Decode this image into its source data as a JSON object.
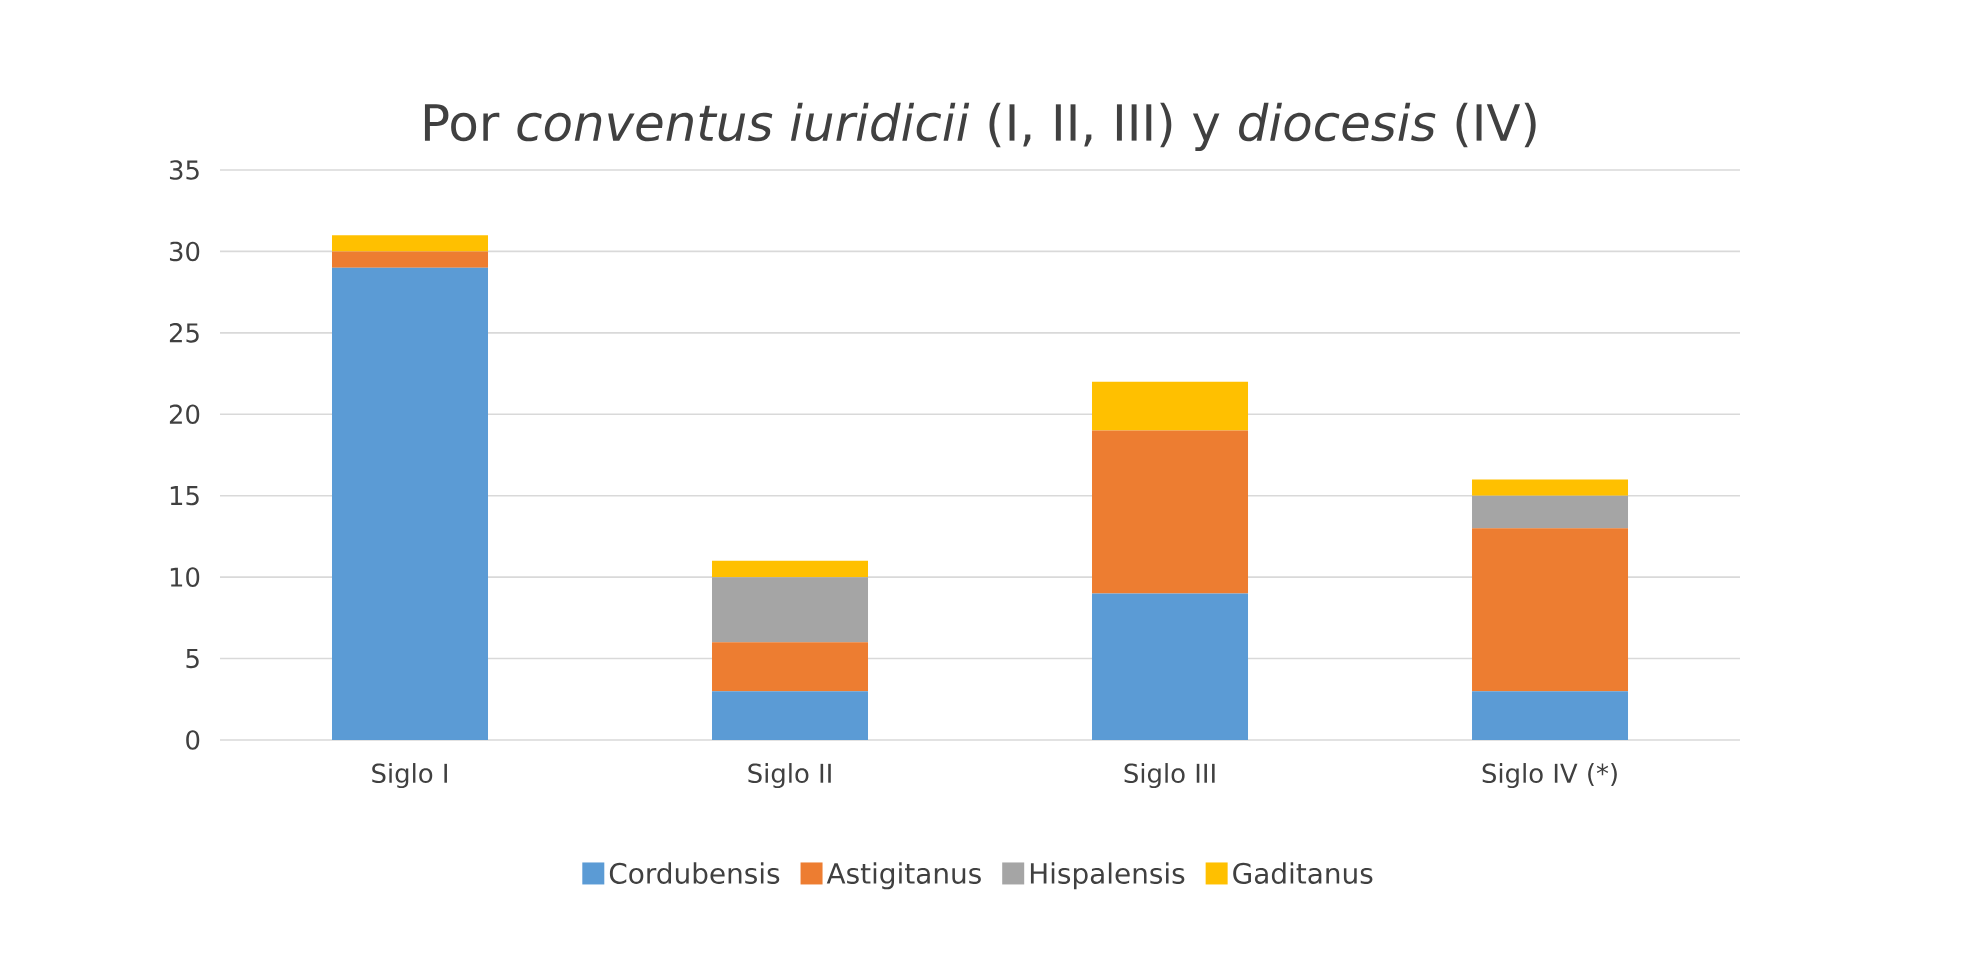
{
  "chart_data": {
    "type": "bar",
    "stacked": true,
    "title": "Por *conventus iuridicii* (I, II, III) y *diocesis* (IV)",
    "categories": [
      "Siglo I",
      "Siglo II",
      "Siglo III",
      "Siglo IV (*)"
    ],
    "series": [
      {
        "name": "Cordubensis",
        "color": "#5b9bd5",
        "values": [
          29,
          3,
          9,
          3
        ]
      },
      {
        "name": "Astigitanus",
        "color": "#ed7d31",
        "values": [
          1,
          3,
          10,
          10
        ]
      },
      {
        "name": "Hispalensis",
        "color": "#a5a5a5",
        "values": [
          0,
          4,
          0,
          2
        ]
      },
      {
        "name": "Gaditanus",
        "color": "#ffc000",
        "values": [
          1,
          1,
          3,
          1
        ]
      }
    ],
    "ylim": [
      0,
      35
    ],
    "yticks": [
      0,
      5,
      10,
      15,
      20,
      25,
      30,
      35
    ],
    "grid": "y",
    "legend": "bottom"
  }
}
